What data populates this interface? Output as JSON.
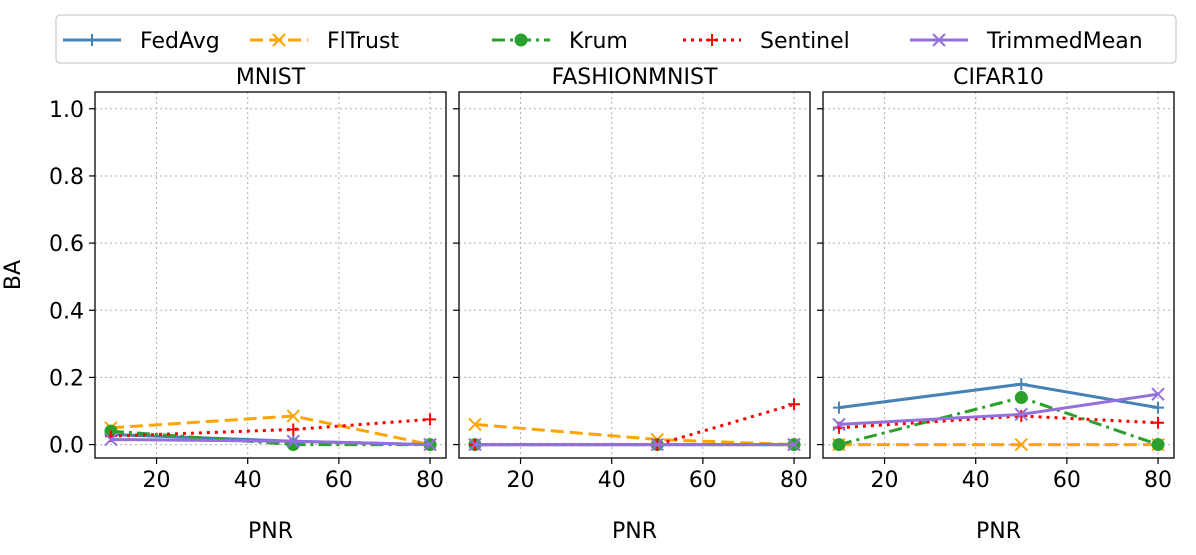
{
  "chart_data": {
    "type": "line",
    "ylabel": "BA",
    "xlabel": "PNR",
    "ylim": [
      -0.04,
      1.05
    ],
    "yticks": [
      0.0,
      0.2,
      0.4,
      0.6,
      0.8,
      1.0
    ],
    "ytick_labels": [
      "0.0",
      "0.2",
      "0.4",
      "0.6",
      "0.8",
      "1.0"
    ],
    "xlim": [
      6.5,
      83.5
    ],
    "xticks": [
      20,
      40,
      60,
      80
    ],
    "xtick_labels": [
      "20",
      "40",
      "60",
      "80"
    ],
    "grid": true,
    "legend_position": "top",
    "legend": [
      {
        "name": "FedAvg",
        "color": "#4682b4",
        "dash": "solid",
        "marker": "plus"
      },
      {
        "name": "FlTrust",
        "color": "#ffa500",
        "dash": "dashed",
        "marker": "x"
      },
      {
        "name": "Krum",
        "color": "#2ca02c",
        "dash": "dashdot",
        "marker": "circle"
      },
      {
        "name": "Sentinel",
        "color": "#ff0000",
        "dash": "dotted",
        "marker": "plus"
      },
      {
        "name": "TrimmedMean",
        "color": "#9370db",
        "dash": "solid",
        "marker": "x"
      }
    ],
    "panels": [
      {
        "title": "MNIST",
        "x": [
          10,
          50,
          80
        ],
        "series": [
          {
            "name": "FedAvg",
            "values": [
              0.03,
              0.01,
              0.0
            ]
          },
          {
            "name": "FlTrust",
            "values": [
              0.05,
              0.085,
              0.0
            ]
          },
          {
            "name": "Krum",
            "values": [
              0.04,
              0.0,
              0.0
            ]
          },
          {
            "name": "Sentinel",
            "values": [
              0.025,
              0.045,
              0.075
            ]
          },
          {
            "name": "TrimmedMean",
            "values": [
              0.015,
              0.01,
              0.0
            ]
          }
        ]
      },
      {
        "title": "FASHIONMNIST",
        "x": [
          10,
          50,
          80
        ],
        "series": [
          {
            "name": "FedAvg",
            "values": [
              0.0,
              0.0,
              0.0
            ]
          },
          {
            "name": "FlTrust",
            "values": [
              0.06,
              0.015,
              0.0
            ]
          },
          {
            "name": "Krum",
            "values": [
              0.0,
              0.0,
              0.0
            ]
          },
          {
            "name": "Sentinel",
            "values": [
              0.0,
              0.0,
              0.12
            ]
          },
          {
            "name": "TrimmedMean",
            "values": [
              0.0,
              0.0,
              0.0
            ]
          }
        ]
      },
      {
        "title": "CIFAR10",
        "x": [
          10,
          50,
          80
        ],
        "series": [
          {
            "name": "FedAvg",
            "values": [
              0.11,
              0.18,
              0.11
            ]
          },
          {
            "name": "FlTrust",
            "values": [
              0.0,
              0.0,
              0.0
            ]
          },
          {
            "name": "Krum",
            "values": [
              0.0,
              0.14,
              0.0
            ]
          },
          {
            "name": "Sentinel",
            "values": [
              0.05,
              0.085,
              0.065
            ]
          },
          {
            "name": "TrimmedMean",
            "values": [
              0.06,
              0.09,
              0.15
            ]
          }
        ]
      }
    ]
  }
}
